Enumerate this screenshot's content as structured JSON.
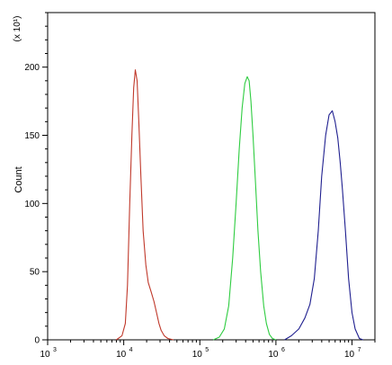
{
  "chart_data": {
    "type": "line",
    "ylabel": "Count",
    "y_multiplier_label": "(x 10¹)",
    "x_scale": "log",
    "xlim": [
      1000,
      20000000
    ],
    "ylim": [
      0,
      240
    ],
    "x_ticks": [
      {
        "base": "10",
        "exp": "3",
        "value": 1000
      },
      {
        "base": "10",
        "exp": "4",
        "value": 10000
      },
      {
        "base": "10",
        "exp": "5",
        "value": 100000
      },
      {
        "base": "10",
        "exp": "6",
        "value": 1000000
      },
      {
        "base": "10",
        "exp": "7",
        "value": 10000000
      }
    ],
    "y_ticks": [
      "0",
      "50",
      "100",
      "150",
      "200"
    ],
    "grid": false,
    "series": [
      {
        "color": "#c0392b",
        "points": [
          [
            8000,
            0
          ],
          [
            9500,
            3
          ],
          [
            10500,
            12
          ],
          [
            11200,
            40
          ],
          [
            12000,
            100
          ],
          [
            12800,
            150
          ],
          [
            13500,
            185
          ],
          [
            14200,
            198
          ],
          [
            15000,
            190
          ],
          [
            15800,
            160
          ],
          [
            16800,
            120
          ],
          [
            18000,
            80
          ],
          [
            19500,
            55
          ],
          [
            21000,
            42
          ],
          [
            23000,
            35
          ],
          [
            25000,
            28
          ],
          [
            27000,
            20
          ],
          [
            29000,
            12
          ],
          [
            31000,
            7
          ],
          [
            34000,
            3
          ],
          [
            38000,
            1
          ],
          [
            45000,
            0
          ]
        ]
      },
      {
        "color": "#2ecc40",
        "points": [
          [
            150000,
            0
          ],
          [
            180000,
            2
          ],
          [
            210000,
            8
          ],
          [
            240000,
            25
          ],
          [
            270000,
            60
          ],
          [
            300000,
            100
          ],
          [
            330000,
            140
          ],
          [
            360000,
            170
          ],
          [
            390000,
            188
          ],
          [
            420000,
            193
          ],
          [
            445000,
            190
          ],
          [
            470000,
            175
          ],
          [
            500000,
            150
          ],
          [
            540000,
            115
          ],
          [
            580000,
            80
          ],
          [
            630000,
            50
          ],
          [
            690000,
            25
          ],
          [
            750000,
            12
          ],
          [
            820000,
            4
          ],
          [
            900000,
            1
          ],
          [
            1000000,
            0
          ]
        ]
      },
      {
        "color": "#1f1f8f",
        "points": [
          [
            1300000,
            0
          ],
          [
            1600000,
            3
          ],
          [
            2000000,
            8
          ],
          [
            2400000,
            16
          ],
          [
            2800000,
            26
          ],
          [
            3200000,
            45
          ],
          [
            3600000,
            80
          ],
          [
            4000000,
            120
          ],
          [
            4500000,
            150
          ],
          [
            5000000,
            165
          ],
          [
            5500000,
            168
          ],
          [
            6000000,
            160
          ],
          [
            6500000,
            148
          ],
          [
            7000000,
            130
          ],
          [
            7500000,
            110
          ],
          [
            8200000,
            80
          ],
          [
            9000000,
            45
          ],
          [
            10000000,
            20
          ],
          [
            11000000,
            8
          ],
          [
            12500000,
            1
          ],
          [
            14000000,
            0
          ]
        ]
      }
    ]
  }
}
